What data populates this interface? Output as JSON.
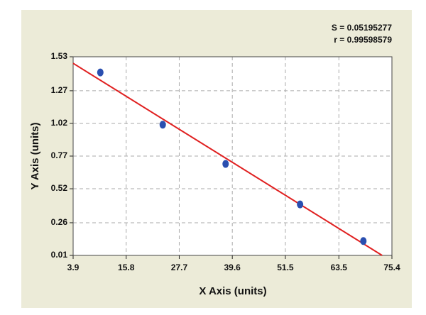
{
  "chart_data": {
    "type": "scatter",
    "xlabel": "X Axis (units)",
    "ylabel": "Y Axis (units)",
    "annotations": [
      "S = 0.05195277",
      "r = 0.99598579"
    ],
    "x": [
      10.0,
      24.0,
      38.1,
      54.8,
      69.0
    ],
    "values": [
      1.41,
      1.01,
      0.71,
      0.4,
      0.12
    ],
    "color": "#2a4fb0",
    "fit_line": {
      "x": [
        3.9,
        73.2
      ],
      "values": [
        1.48,
        0.01
      ],
      "color": "#e02020"
    },
    "xlim": [
      3.9,
      75.4
    ],
    "xticks": [
      3.9,
      15.8,
      27.7,
      39.6,
      51.5,
      63.5,
      75.4
    ],
    "ylim": [
      0.01,
      1.53
    ],
    "yticks": [
      0.01,
      0.26,
      0.52,
      0.77,
      1.02,
      1.27,
      1.53
    ],
    "grid": true
  }
}
